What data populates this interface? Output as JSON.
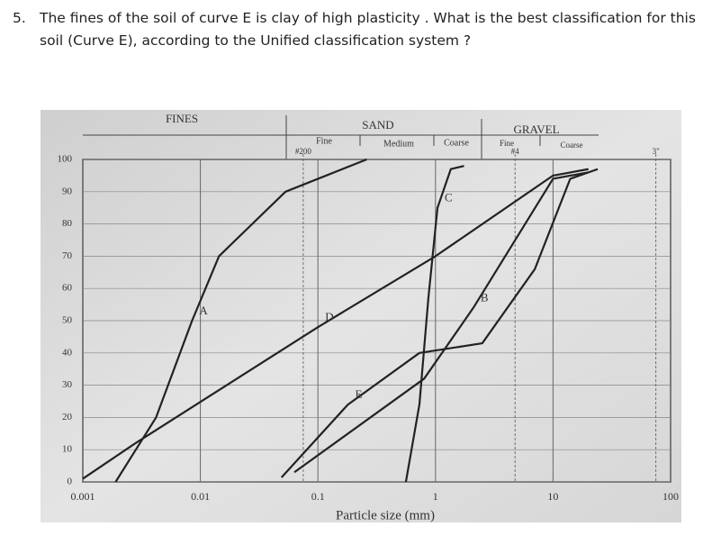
{
  "question": {
    "number": "5.",
    "text": "The fines of the soil of curve E is clay of high plasticity . What is the best classification for this soil (Curve E), according to the Unified classification system ?"
  },
  "chart_data": {
    "type": "line",
    "xlabel": "Particle size (mm)",
    "xscale": "log",
    "xlim": [
      0.001,
      100
    ],
    "xticks": [
      0.001,
      0.01,
      0.1,
      1,
      10,
      100
    ],
    "ylim": [
      0,
      100
    ],
    "yticks": [
      0,
      10,
      20,
      30,
      40,
      50,
      60,
      70,
      80,
      90,
      100
    ],
    "grid": true,
    "header": {
      "fines": "FINES",
      "sand": "SAND",
      "sand_fine": "Fine",
      "sand_medium": "Medium",
      "sand_coarse": "Coarse",
      "gravel": "GRAVEL",
      "gravel_fine": "Fine",
      "gravel_coarse": "Coarse"
    },
    "sieves": [
      {
        "label": "#200",
        "value": 0.075
      },
      {
        "label": "#4",
        "value": 4.75
      },
      {
        "label": "3\"",
        "value": 75
      }
    ],
    "series": [
      {
        "name": "A",
        "color": "#222222",
        "x": [
          0.0019,
          0.0042,
          0.0085,
          0.0144,
          0.053,
          0.26
        ],
        "values": [
          0,
          20,
          50,
          70,
          90,
          100
        ]
      },
      {
        "name": "B",
        "color": "#222222",
        "x": [
          0.063,
          0.8,
          2.1,
          10,
          20
        ],
        "values": [
          3,
          32,
          54,
          94,
          96
        ]
      },
      {
        "name": "C",
        "color": "#222222",
        "x": [
          0.56,
          0.73,
          0.87,
          1.04,
          1.35,
          1.75
        ],
        "values": [
          0,
          24,
          57,
          85,
          97,
          98
        ]
      },
      {
        "name": "D",
        "color": "#222222",
        "x": [
          0.001,
          0.0028,
          0.1,
          1,
          10,
          20
        ],
        "values": [
          1,
          12,
          48,
          70,
          95,
          97
        ]
      },
      {
        "name": "E",
        "color": "#222222",
        "x": [
          0.049,
          0.18,
          0.73,
          2.5,
          7,
          14,
          24
        ],
        "values": [
          1.4,
          24,
          40,
          43,
          66,
          94,
          97
        ]
      }
    ]
  }
}
